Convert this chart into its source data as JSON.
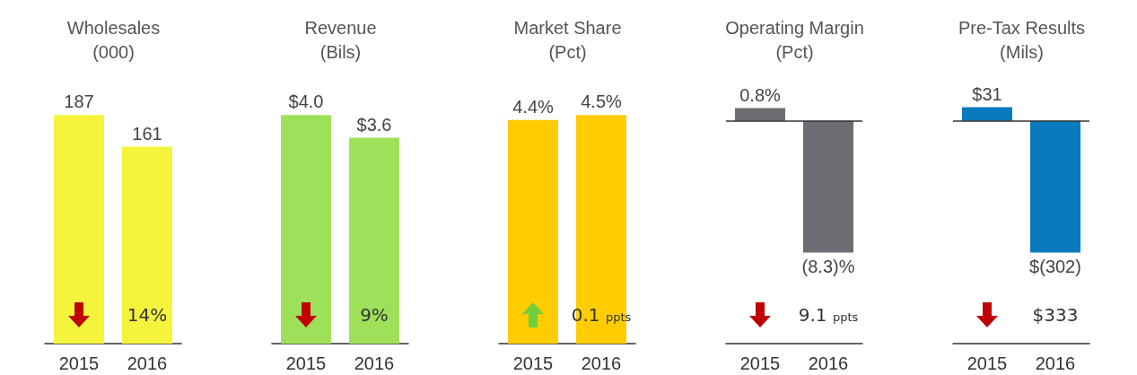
{
  "chart_data": [
    {
      "type": "bar",
      "title": "Wholesales\n(000)",
      "categories": [
        "2015",
        "2016"
      ],
      "values": [
        187,
        161
      ],
      "colors": [
        "#f4f43c",
        "#f4f43c"
      ],
      "value_labels": [
        "187",
        "161"
      ],
      "annotations": [
        "14%"
      ]
    },
    {
      "type": "bar",
      "title": "Revenue\n(Bils)",
      "categories": [
        "2015",
        "2016"
      ],
      "values": [
        4.0,
        3.6
      ],
      "colors": [
        "#9fe05a",
        "#9fe05a"
      ],
      "value_labels": [
        "$4.0",
        "$3.6"
      ],
      "annotations": [
        "9%"
      ]
    },
    {
      "type": "bar",
      "title": "Market Share\n(Pct)",
      "categories": [
        "2015",
        "2016"
      ],
      "values": [
        4.4,
        4.5
      ],
      "colors": [
        "#ffcc00",
        "#ffcc00"
      ],
      "value_labels": [
        "4.4%",
        "4.5%"
      ],
      "annotations": [
        "0.1 ppts"
      ]
    },
    {
      "type": "bar",
      "title": "Operating Margin\n(Pct)",
      "categories": [
        "2015",
        "2016"
      ],
      "values": [
        0.8,
        -8.3
      ],
      "colors": [
        "#6d6e73",
        "#6d6e73"
      ],
      "value_labels": [
        "0.8%",
        "(8.3)%"
      ],
      "annotations": [
        "9.1 ppts"
      ]
    },
    {
      "type": "bar",
      "title": "Pre-Tax Results\n(Mils)",
      "categories": [
        "2015",
        "2016"
      ],
      "values": [
        31,
        -302
      ],
      "colors": [
        "#0a7abf",
        "#0a7abf"
      ],
      "value_labels": [
        "$31",
        "$(302)"
      ],
      "annotations": [
        "$333"
      ]
    }
  ]
}
